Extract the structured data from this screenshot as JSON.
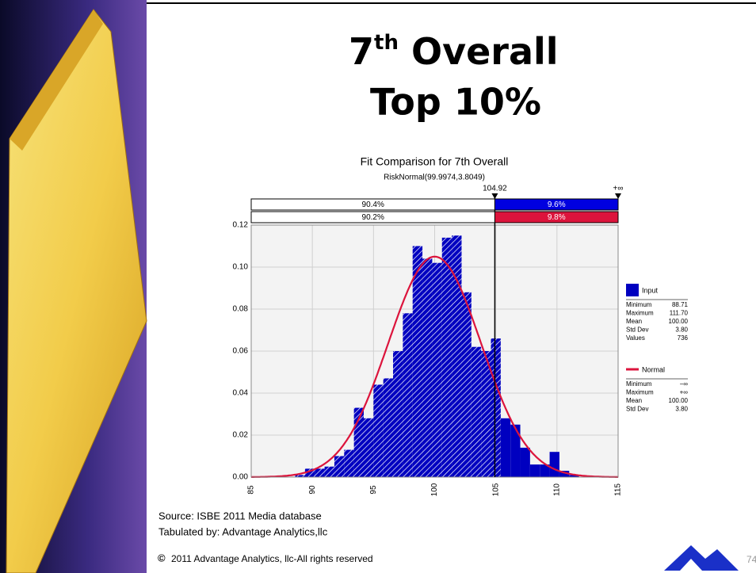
{
  "slide": {
    "title_number": "7",
    "title_sup": "th",
    "title_rest": "Overall",
    "title_line2": "Top 10%",
    "source": "Source: ISBE 2011 Media database",
    "tabulated": "Tabulated by: Advantage Analytics,llc",
    "copyright_symbol": "©",
    "copyright": "2011 Advantage Analytics, llc-All rights reserved",
    "page_number": "74"
  },
  "chart_data": {
    "type": "histogram",
    "title": "Fit Comparison for 7th Overall",
    "subtitle": "RiskNormal(99.9974,3.8049)",
    "bins": [
      88.6,
      89.4,
      90.2,
      91.0,
      91.8,
      92.6,
      93.4,
      94.2,
      95.0,
      95.8,
      96.6,
      97.4,
      98.2,
      99.0,
      99.8,
      100.6,
      101.4,
      102.2,
      103.0,
      103.8,
      104.6,
      105.4,
      106.2,
      107.0,
      107.8,
      108.6,
      109.4,
      110.2,
      111.0,
      111.8
    ],
    "values": [
      0.001,
      0.004,
      0.004,
      0.005,
      0.01,
      0.013,
      0.033,
      0.028,
      0.044,
      0.047,
      0.06,
      0.078,
      0.11,
      0.104,
      0.102,
      0.114,
      0.115,
      0.088,
      0.062,
      0.06,
      0.066,
      0.028,
      0.025,
      0.014,
      0.006,
      0.006,
      0.012,
      0.003,
      0.001
    ],
    "color": "#0000c0",
    "xlim": [
      85,
      115
    ],
    "xticks": [
      85,
      90,
      95,
      100,
      105,
      110,
      115
    ],
    "ylim": [
      0,
      0.12
    ],
    "yticks": [
      {
        "value": 0,
        "label": "0.00"
      },
      {
        "value": 0.02,
        "label": "0.02"
      },
      {
        "value": 0.04,
        "label": "0.04"
      },
      {
        "value": 0.06,
        "label": "0.06"
      },
      {
        "value": 0.08,
        "label": "0.08"
      },
      {
        "value": 0.1,
        "label": "0.10"
      },
      {
        "value": 0.12,
        "label": "0.12"
      }
    ],
    "grid": true,
    "delimiter": 104.92,
    "upper_label": "+∞",
    "bands": [
      {
        "name": "Input",
        "color": "#0000e0",
        "left": "90.4%",
        "right": "9.6%"
      },
      {
        "name": "Normal",
        "color": "#dc143c",
        "left": "90.2%",
        "right": "9.8%"
      }
    ],
    "legend": [
      {
        "name": "Input",
        "color": "#0000c0",
        "stats": [
          [
            "Minimum",
            "88.71"
          ],
          [
            "Maximum",
            "111.70"
          ],
          [
            "Mean",
            "100.00"
          ],
          [
            "Std Dev",
            "3.80"
          ],
          [
            "Values",
            "736"
          ]
        ]
      },
      {
        "name": "Normal",
        "color": "#dc143c",
        "stats": [
          [
            "Minimum",
            "−∞"
          ],
          [
            "Maximum",
            "+∞"
          ],
          [
            "Mean",
            "100.00"
          ],
          [
            "Std Dev",
            "3.80"
          ]
        ]
      }
    ]
  }
}
